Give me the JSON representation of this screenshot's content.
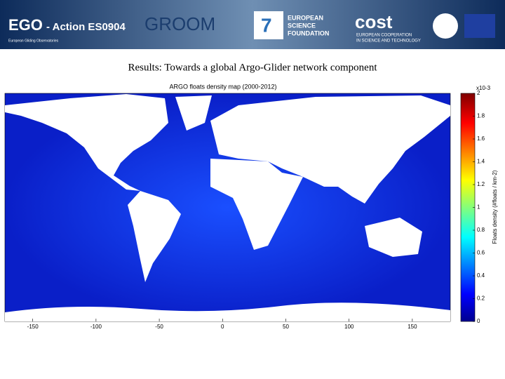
{
  "header": {
    "ego": "EGO",
    "action": "- Action ES0904",
    "ego_tagline": "European Gliding Observatories",
    "groom": "GROOM",
    "esf": [
      "EUROPEAN",
      "SCIENCE",
      "FOUNDATION"
    ],
    "cost": "cost",
    "cost_tagline": [
      "EUROPEAN COOPERATION",
      "IN SCIENCE AND TECHNOLOGY"
    ]
  },
  "slide_title": "Results: Towards a global Argo-Glider network component",
  "map": {
    "title": "ARGO floats density map (2000-2012)",
    "xlim": [
      -172,
      180
    ],
    "xticks": [
      -150,
      -100,
      -50,
      0,
      50,
      100,
      150
    ],
    "colorbar": {
      "lim": [
        0,
        2
      ],
      "ticks": [
        0,
        0.2,
        0.4,
        0.6,
        0.8,
        1,
        1.2,
        1.4,
        1.6,
        1.8,
        2
      ],
      "exponent": "x10-3",
      "label": "Floats density (#floats / km-2)"
    }
  }
}
